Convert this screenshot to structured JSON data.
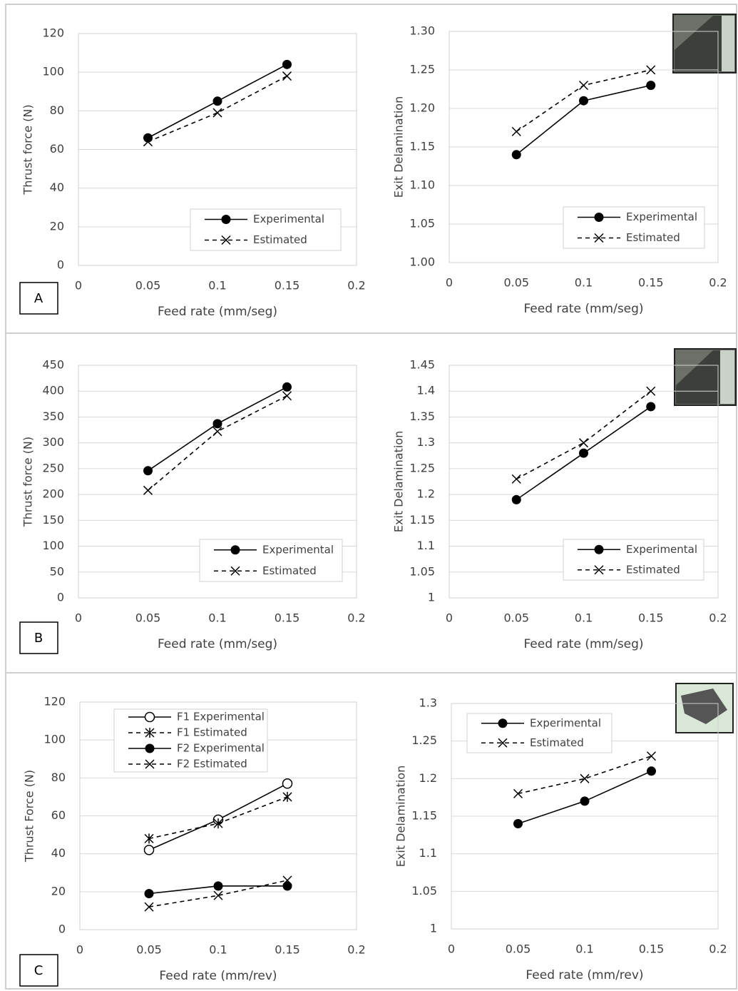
{
  "chart_data": [
    {
      "type": "line",
      "panel_label": "A",
      "x_label": "Feed rate (mm/seg)",
      "y_label": "Thrust force (N)",
      "x": [
        0.05,
        0.1,
        0.15
      ],
      "xlim": [
        0,
        0.2
      ],
      "xticks": [
        0,
        0.05,
        0.1,
        0.15,
        0.2
      ],
      "ylim": [
        0,
        120
      ],
      "yticks": [
        0,
        20,
        40,
        60,
        80,
        100,
        120
      ],
      "grid": true,
      "series": [
        {
          "name": "Experimental",
          "color": "#000000",
          "marker": "circle-filled",
          "dash": false,
          "values": [
            66,
            85,
            104
          ]
        },
        {
          "name": "Estimated",
          "color": "#000000",
          "marker": "x",
          "dash": true,
          "values": [
            64,
            79,
            98
          ]
        }
      ]
    },
    {
      "type": "line",
      "x_label": "Feed rate (mm/seg)",
      "y_label": "Exit Delamination",
      "x": [
        0.05,
        0.1,
        0.15
      ],
      "xlim": [
        0,
        0.2
      ],
      "xticks": [
        0,
        0.05,
        0.1,
        0.15,
        0.2
      ],
      "ylim": [
        1.0,
        1.3
      ],
      "yticks": [
        {
          "value": 1.0,
          "label": "1.00"
        },
        {
          "value": 1.05,
          "label": "1.05"
        },
        {
          "value": 1.1,
          "label": "1.10"
        },
        {
          "value": 1.15,
          "label": "1.15"
        },
        {
          "value": 1.2,
          "label": "1.20"
        },
        {
          "value": 1.25,
          "label": "1.25"
        },
        {
          "value": 1.3,
          "label": "1.30"
        }
      ],
      "grid": true,
      "series": [
        {
          "name": "Experimental",
          "color": "#000000",
          "marker": "circle-filled",
          "dash": false,
          "values": [
            1.14,
            1.21,
            1.23
          ]
        },
        {
          "name": "Estimated",
          "color": "#000000",
          "marker": "x",
          "dash": true,
          "values": [
            1.17,
            1.23,
            1.25
          ]
        }
      ]
    },
    {
      "type": "line",
      "panel_label": "B",
      "x_label": "Feed rate (mm/seg)",
      "y_label": "Thrust force (N)",
      "x": [
        0.05,
        0.1,
        0.15
      ],
      "xlim": [
        0,
        0.2
      ],
      "xticks": [
        0,
        0.05,
        0.1,
        0.15,
        0.2
      ],
      "ylim": [
        0,
        450
      ],
      "yticks": [
        0,
        50,
        100,
        150,
        200,
        250,
        300,
        350,
        400,
        450
      ],
      "grid": true,
      "series": [
        {
          "name": "Experimental",
          "color": "#000000",
          "marker": "circle-filled",
          "dash": false,
          "values": [
            246,
            337,
            408
          ]
        },
        {
          "name": "Estimated",
          "color": "#000000",
          "marker": "x",
          "dash": true,
          "values": [
            208,
            322,
            391
          ]
        }
      ]
    },
    {
      "type": "line",
      "x_label": "Feed rate (mm/seg)",
      "y_label": "Exit Delamination",
      "x": [
        0.05,
        0.1,
        0.15
      ],
      "xlim": [
        0,
        0.2
      ],
      "xticks": [
        0,
        0.05,
        0.1,
        0.15,
        0.2
      ],
      "ylim": [
        1,
        1.45
      ],
      "yticks": [
        1,
        1.05,
        1.1,
        1.15,
        1.2,
        1.25,
        1.3,
        1.35,
        1.4,
        1.45
      ],
      "grid": true,
      "series": [
        {
          "name": "Experimental",
          "color": "#000000",
          "marker": "circle-filled",
          "dash": false,
          "values": [
            1.19,
            1.28,
            1.37
          ]
        },
        {
          "name": "Estimated",
          "color": "#000000",
          "marker": "x",
          "dash": true,
          "values": [
            1.23,
            1.3,
            1.4
          ]
        }
      ]
    },
    {
      "type": "line",
      "panel_label": "C",
      "x_label": "Feed rate (mm/rev)",
      "y_label": "Thrust Force (N)",
      "x": [
        0.05,
        0.1,
        0.15
      ],
      "xlim": [
        0,
        0.2
      ],
      "xticks": [
        0,
        0.05,
        0.1,
        0.15,
        0.2
      ],
      "ylim": [
        0,
        120
      ],
      "yticks": [
        0,
        20,
        40,
        60,
        80,
        100,
        120
      ],
      "grid": true,
      "series": [
        {
          "name": "F1 Experimental",
          "color": "#000000",
          "marker": "circle-open",
          "dash": false,
          "values": [
            42,
            58,
            77
          ]
        },
        {
          "name": "F1 Estimated",
          "color": "#000000",
          "marker": "asterisk",
          "dash": true,
          "values": [
            48,
            56,
            70
          ]
        },
        {
          "name": "F2 Experimental",
          "color": "#000000",
          "marker": "circle-filled",
          "dash": false,
          "values": [
            19,
            23,
            23
          ]
        },
        {
          "name": "F2 Estimated",
          "color": "#000000",
          "marker": "x",
          "dash": true,
          "values": [
            12,
            18,
            26
          ]
        }
      ]
    },
    {
      "type": "line",
      "x_label": "Feed rate (mm/rev)",
      "y_label": "Exit Delamination",
      "x": [
        0.05,
        0.1,
        0.15
      ],
      "xlim": [
        0,
        0.2
      ],
      "xticks": [
        0,
        0.05,
        0.1,
        0.15,
        0.2
      ],
      "ylim": [
        1,
        1.3
      ],
      "yticks": [
        1,
        1.05,
        1.1,
        1.15,
        1.2,
        1.25,
        1.3
      ],
      "grid": true,
      "series": [
        {
          "name": "Experimental",
          "color": "#000000",
          "marker": "circle-filled",
          "dash": false,
          "values": [
            1.14,
            1.17,
            1.21
          ]
        },
        {
          "name": "Estimated",
          "color": "#000000",
          "marker": "x",
          "dash": true,
          "values": [
            1.18,
            1.2,
            1.23
          ]
        }
      ]
    }
  ]
}
